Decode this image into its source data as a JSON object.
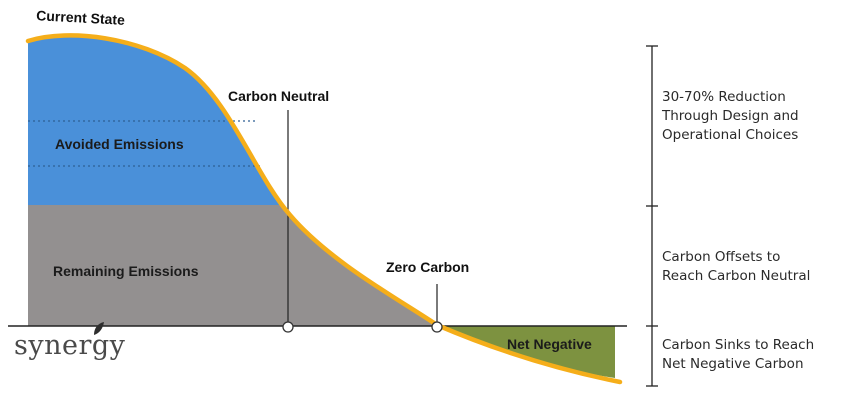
{
  "labels": {
    "current_state": "Current State",
    "carbon_neutral": "Carbon Neutral",
    "zero_carbon": "Zero Carbon",
    "avoided_emissions": "Avoided Emissions",
    "remaining_emissions": "Remaining Emissions",
    "net_negative": "Net Negative"
  },
  "side_notes": [
    "30-70% Reduction\nThrough Design and\nOperational Choices",
    "Carbon Offsets to\nReach Carbon Neutral",
    "Carbon Sinks to Reach\nNet Negative Carbon"
  ],
  "brand": "synergy",
  "colors": {
    "avoided_fill": "#4a90d9",
    "remaining_fill": "#939090",
    "net_negative_fill": "#7d9240",
    "curve": "#f5ae1a",
    "axis": "#222222"
  }
}
